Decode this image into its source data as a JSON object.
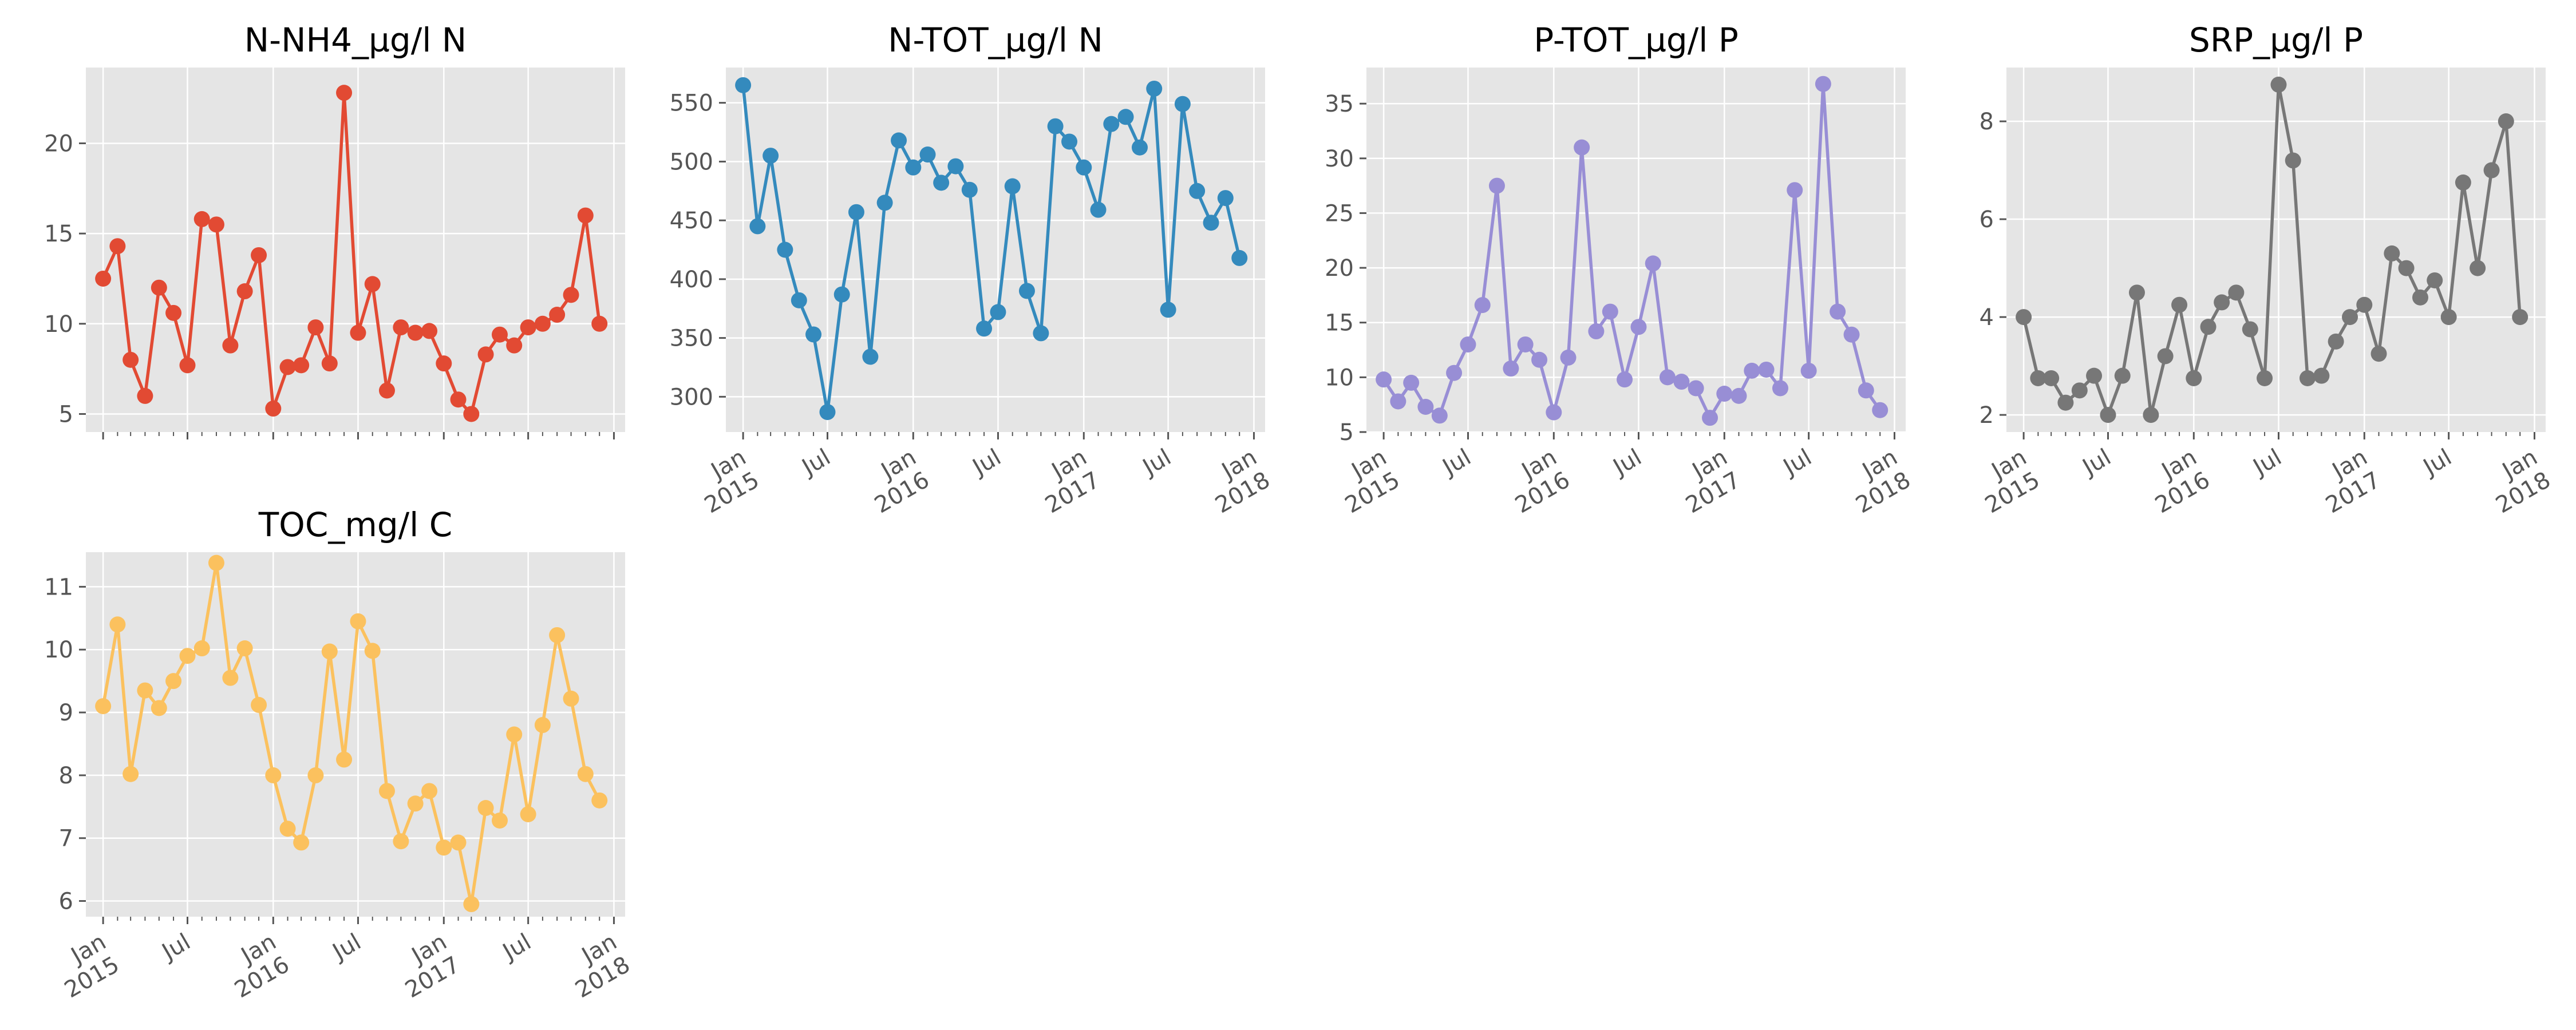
{
  "chart_data": [
    {
      "type": "line",
      "title": "N-NH4_µg/l N",
      "color": "#E24A33",
      "ylim": [
        4,
        24.2
      ],
      "yticks": [
        5,
        10,
        15,
        20
      ],
      "x": [
        "2015-01",
        "2015-02",
        "2015-03",
        "2015-04",
        "2015-05",
        "2015-06",
        "2015-07",
        "2015-08",
        "2015-09",
        "2015-10",
        "2015-11",
        "2015-12",
        "2016-01",
        "2016-02",
        "2016-03",
        "2016-04",
        "2016-05",
        "2016-06",
        "2016-07",
        "2016-08",
        "2016-09",
        "2016-10",
        "2016-11",
        "2016-12",
        "2017-01",
        "2017-02",
        "2017-03",
        "2017-04",
        "2017-05",
        "2017-06",
        "2017-07",
        "2017-08",
        "2017-09",
        "2017-10",
        "2017-11",
        "2017-12"
      ],
      "values": [
        12.5,
        14.3,
        8.0,
        6.0,
        12.0,
        10.6,
        7.7,
        15.8,
        15.5,
        8.8,
        11.8,
        13.8,
        5.3,
        7.6,
        7.7,
        9.8,
        7.8,
        22.8,
        9.5,
        12.2,
        6.3,
        9.8,
        9.5,
        9.6,
        7.8,
        5.8,
        5.0,
        8.3,
        9.4,
        8.8,
        9.8,
        10.0,
        10.5,
        11.6,
        16.0,
        10.0
      ],
      "show_xlabels": false
    },
    {
      "type": "line",
      "title": "N-TOT_µg/l N",
      "color": "#348ABD",
      "ylim": [
        270,
        580
      ],
      "yticks": [
        300,
        350,
        400,
        450,
        500,
        550
      ],
      "x": [
        "2015-01",
        "2015-02",
        "2015-03",
        "2015-04",
        "2015-05",
        "2015-06",
        "2015-07",
        "2015-08",
        "2015-09",
        "2015-10",
        "2015-11",
        "2015-12",
        "2016-01",
        "2016-02",
        "2016-03",
        "2016-04",
        "2016-05",
        "2016-06",
        "2016-07",
        "2016-08",
        "2016-09",
        "2016-10",
        "2016-11",
        "2016-12",
        "2017-01",
        "2017-02",
        "2017-03",
        "2017-04",
        "2017-05",
        "2017-06",
        "2017-07",
        "2017-08",
        "2017-09",
        "2017-10",
        "2017-11",
        "2017-12"
      ],
      "values": [
        565,
        445,
        505,
        425,
        382,
        353,
        287,
        387,
        457,
        334,
        465,
        518,
        495,
        506,
        482,
        496,
        476,
        358,
        372,
        479,
        390,
        354,
        530,
        517,
        495,
        459,
        532,
        538,
        512,
        562,
        374,
        549,
        475,
        448,
        469,
        418
      ],
      "show_xlabels": true
    },
    {
      "type": "line",
      "title": "P-TOT_µg/l P",
      "color": "#988ED5",
      "ylim": [
        5,
        38.3
      ],
      "yticks": [
        5,
        10,
        15,
        20,
        25,
        30,
        35
      ],
      "x": [
        "2015-01",
        "2015-02",
        "2015-03",
        "2015-04",
        "2015-05",
        "2015-06",
        "2015-07",
        "2015-08",
        "2015-09",
        "2015-10",
        "2015-11",
        "2015-12",
        "2016-01",
        "2016-02",
        "2016-03",
        "2016-04",
        "2016-05",
        "2016-06",
        "2016-07",
        "2016-08",
        "2016-09",
        "2016-10",
        "2016-11",
        "2016-12",
        "2017-01",
        "2017-02",
        "2017-03",
        "2017-04",
        "2017-05",
        "2017-06",
        "2017-07",
        "2017-08",
        "2017-09",
        "2017-10",
        "2017-11",
        "2017-12"
      ],
      "values": [
        9.8,
        7.8,
        9.5,
        7.3,
        6.5,
        10.4,
        13.0,
        16.6,
        27.5,
        10.8,
        13.0,
        11.6,
        6.8,
        11.8,
        31.0,
        14.2,
        16.0,
        9.8,
        14.6,
        20.4,
        10.0,
        9.6,
        9.0,
        6.3,
        8.5,
        8.3,
        10.6,
        10.7,
        9.0,
        27.1,
        10.6,
        36.8,
        16.0,
        13.9,
        8.8,
        7.0
      ],
      "show_xlabels": true
    },
    {
      "type": "line",
      "title": "SRP_µg/l P",
      "color": "#777777",
      "ylim": [
        1.65,
        9.1
      ],
      "yticks": [
        2,
        4,
        6,
        8
      ],
      "x": [
        "2015-01",
        "2015-02",
        "2015-03",
        "2015-04",
        "2015-05",
        "2015-06",
        "2015-07",
        "2015-08",
        "2015-09",
        "2015-10",
        "2015-11",
        "2015-12",
        "2016-01",
        "2016-02",
        "2016-03",
        "2016-04",
        "2016-05",
        "2016-06",
        "2016-07",
        "2016-08",
        "2016-09",
        "2016-10",
        "2016-11",
        "2016-12",
        "2017-01",
        "2017-02",
        "2017-03",
        "2017-04",
        "2017-05",
        "2017-06",
        "2017-07",
        "2017-08",
        "2017-09",
        "2017-10",
        "2017-11",
        "2017-12"
      ],
      "values": [
        4.0,
        2.75,
        2.75,
        2.25,
        2.5,
        2.8,
        2.0,
        2.8,
        4.5,
        2.0,
        3.2,
        4.25,
        2.75,
        3.8,
        4.3,
        4.5,
        3.75,
        2.75,
        8.75,
        7.2,
        2.75,
        2.8,
        3.5,
        4.0,
        4.25,
        3.25,
        5.3,
        5.0,
        4.4,
        4.75,
        4.0,
        6.75,
        5.0,
        7.0,
        8.0,
        4.0
      ],
      "show_xlabels": true
    },
    {
      "type": "line",
      "title": "TOC_mg/l C",
      "color": "#FBC15E",
      "ylim": [
        5.75,
        11.55
      ],
      "yticks": [
        6,
        7,
        8,
        9,
        10,
        11
      ],
      "x": [
        "2015-01",
        "2015-02",
        "2015-03",
        "2015-04",
        "2015-05",
        "2015-06",
        "2015-07",
        "2015-08",
        "2015-09",
        "2015-10",
        "2015-11",
        "2015-12",
        "2016-01",
        "2016-02",
        "2016-03",
        "2016-04",
        "2016-05",
        "2016-06",
        "2016-07",
        "2016-08",
        "2016-09",
        "2016-10",
        "2016-11",
        "2016-12",
        "2017-01",
        "2017-02",
        "2017-03",
        "2017-04",
        "2017-05",
        "2017-06",
        "2017-07",
        "2017-08",
        "2017-09",
        "2017-10",
        "2017-11",
        "2017-12"
      ],
      "values": [
        9.1,
        10.4,
        8.02,
        9.35,
        9.07,
        9.5,
        9.9,
        10.02,
        11.38,
        9.55,
        10.02,
        9.12,
        8.0,
        7.15,
        6.93,
        8.0,
        9.97,
        8.25,
        10.45,
        9.98,
        7.75,
        6.95,
        7.55,
        7.75,
        6.85,
        6.93,
        5.95,
        7.48,
        7.28,
        8.65,
        7.38,
        8.8,
        10.23,
        9.22,
        8.02,
        7.6
      ],
      "show_xlabels": true
    }
  ],
  "x_axis": {
    "major_ticks": [
      "2015-01",
      "2015-07",
      "2016-01",
      "2016-07",
      "2017-01",
      "2017-07",
      "2018-01"
    ],
    "major_labels": [
      "Jan\n2015",
      "Jul",
      "Jan\n2016",
      "Jul",
      "Jan\n2017",
      "Jul",
      "Jan\n2018"
    ],
    "xlim": [
      "2014-11-25",
      "2018-01-25"
    ]
  }
}
